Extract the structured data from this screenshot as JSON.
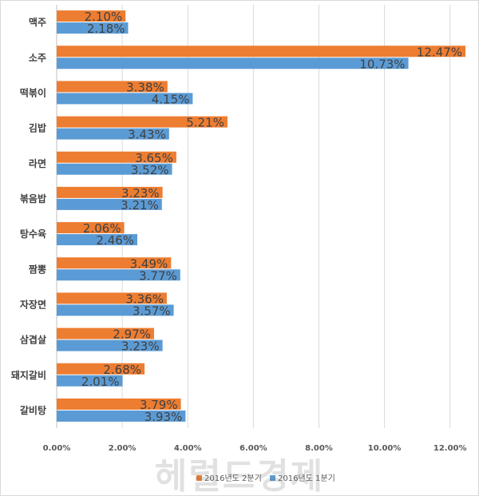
{
  "chart_data": {
    "type": "bar",
    "orientation": "horizontal",
    "categories": [
      "맥주",
      "소주",
      "떡볶이",
      "김밥",
      "라면",
      "볶음밥",
      "탕수육",
      "짬뽕",
      "자장면",
      "삼겹살",
      "돼지갈비",
      "갈비탕"
    ],
    "series": [
      {
        "name": "2016년도 2분기",
        "color": "#ED7D31",
        "values": [
          2.1,
          12.47,
          3.38,
          5.21,
          3.65,
          3.23,
          2.06,
          3.49,
          3.36,
          2.97,
          2.68,
          3.79
        ]
      },
      {
        "name": "2016년도 1분기",
        "color": "#5B9BD5",
        "values": [
          2.18,
          10.73,
          4.15,
          3.43,
          3.52,
          3.21,
          2.46,
          3.77,
          3.57,
          3.23,
          2.01,
          3.93
        ]
      }
    ],
    "value_format": "percent_2dp",
    "xlim": [
      0,
      12.47
    ],
    "xticks": [
      0,
      2,
      4,
      6,
      8,
      10,
      12
    ],
    "xtick_labels": [
      "0.00%",
      "2.00%",
      "4.00%",
      "6.00%",
      "8.00%",
      "10.00%",
      "12.00%"
    ],
    "grid": true,
    "legend_position": "bottom",
    "title": "",
    "xlabel": "",
    "ylabel": ""
  },
  "watermark": "헤럴드경제"
}
